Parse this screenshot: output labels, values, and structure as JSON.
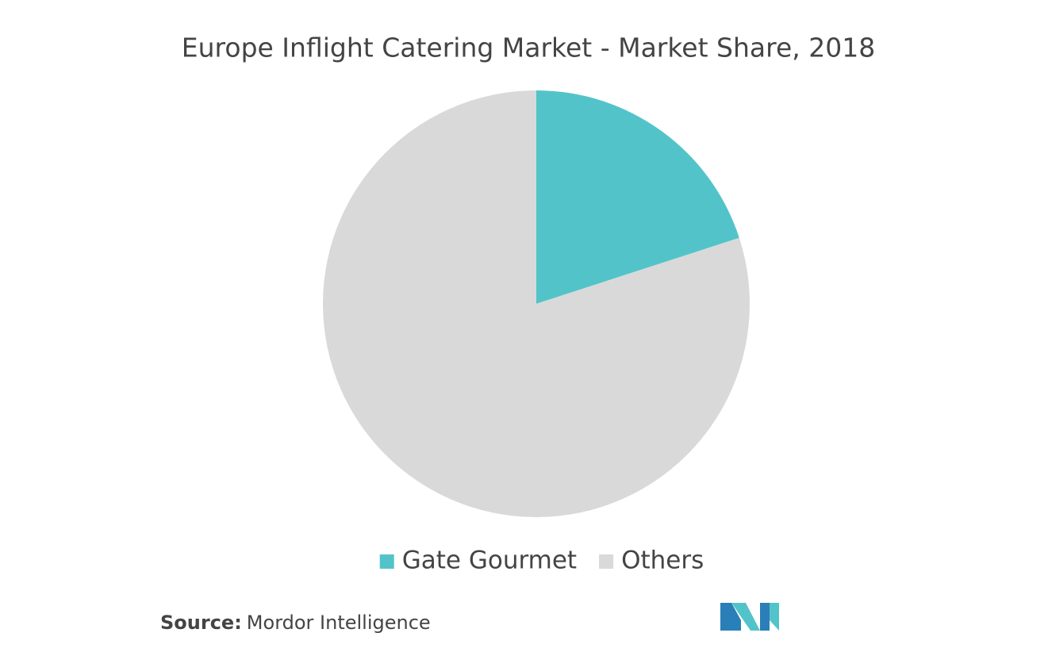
{
  "chart_data": {
    "type": "pie",
    "title": "Europe Inflight Catering Market - Market Share, 2018",
    "categories": [
      "Gate Gourmet",
      "Others"
    ],
    "values": [
      20,
      80
    ],
    "colors": [
      "#52c4c9",
      "#d9d9d9"
    ],
    "legend": "bottom"
  },
  "source": {
    "label": "Source:",
    "text": "Mordor Intelligence"
  }
}
